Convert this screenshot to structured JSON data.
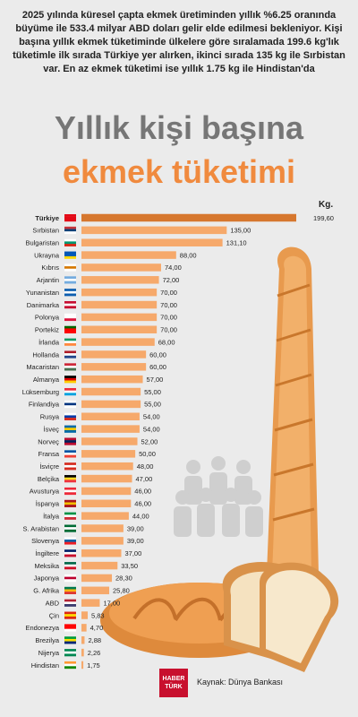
{
  "intro_text": "2025 yılında küresel çapta ekmek üretiminden yıllık %6.25 oranında büyüme ile 533.4 milyar ABD doları gelir elde edilmesi bekleniyor. Kişi başına yıllık ekmek tüketiminde ülkelere göre sıralamada 199.6 kg'lık tüketimle ilk sırada Türkiye yer alırken, ikinci sırada 135 kg ile Sırbistan var. En az ekmek tüketimi ise yıllık 1.75 kg ile Hindistan'da",
  "title_line1": "Yıllık kişi başına",
  "title_line2": "ekmek tüketimi",
  "unit_label": "Kg.",
  "source_text": "Kaynak: Dünya Bankası",
  "logo_text": "HABER TÜRK",
  "colors": {
    "background": "#ebebeb",
    "bar": "#f6a96b",
    "bar_highlight": "#d6772e",
    "title_gray": "#767676",
    "title_orange": "#f08a3e",
    "logo_red": "#c8102e",
    "bread": "#e89a4e",
    "people_icon": "#cfcfcf"
  },
  "chart_data": {
    "type": "bar",
    "orientation": "horizontal",
    "title": "Yıllık kişi başına ekmek tüketimi",
    "unit": "Kg.",
    "categories": [
      "Türkiye",
      "Sırbistan",
      "Bulgaristan",
      "Ukrayna",
      "Kıbrıs",
      "Arjantin",
      "Yunanistan",
      "Danimarka",
      "Polonya",
      "Portekiz",
      "İrlanda",
      "Hollanda",
      "Macaristan",
      "Almanya",
      "Lüksemburg",
      "Finlandiya",
      "Rusya",
      "İsveç",
      "Norveç",
      "Fransa",
      "İsviçre",
      "Belçika",
      "Avusturya",
      "İspanya",
      "İtalya",
      "S. Arabistan",
      "Slovenya",
      "İngiltere",
      "Meksika",
      "Japonya",
      "G. Afrika",
      "ABD",
      "Çin",
      "Endonezya",
      "Brezilya",
      "Nijerya",
      "Hindistan"
    ],
    "values": [
      199.6,
      135,
      131.1,
      88,
      74,
      72,
      70,
      70,
      70,
      70,
      68,
      60,
      60,
      57,
      55,
      55,
      54,
      54,
      52,
      50,
      48,
      47,
      46,
      46,
      44,
      39,
      39,
      37,
      33.5,
      28.3,
      25.8,
      17,
      5.83,
      4.7,
      2.88,
      2.26,
      1.75
    ],
    "value_labels": [
      "199,60",
      "135,00",
      "131,10",
      "88,00",
      "74,00",
      "72,00",
      "70,00",
      "70,00",
      "70,00",
      "70,00",
      "68,00",
      "60,00",
      "60,00",
      "57,00",
      "55,00",
      "55,00",
      "54,00",
      "54,00",
      "52,00",
      "50,00",
      "48,00",
      "47,00",
      "46,00",
      "46,00",
      "44,00",
      "39,00",
      "39,00",
      "37,00",
      "33,50",
      "28,30",
      "25,80",
      "17,00",
      "5,83",
      "4,70",
      "2,88",
      "2,26",
      "1,75"
    ],
    "flag_colors": [
      [
        "#e30a17",
        "#e30a17",
        "#e30a17"
      ],
      [
        "#c6363c",
        "#0c4076",
        "#ffffff"
      ],
      [
        "#ffffff",
        "#00966e",
        "#d62612"
      ],
      [
        "#0057b7",
        "#0057b7",
        "#ffd700"
      ],
      [
        "#ffffff",
        "#d57800",
        "#ffffff"
      ],
      [
        "#74acdf",
        "#ffffff",
        "#74acdf"
      ],
      [
        "#0d5eaf",
        "#ffffff",
        "#0d5eaf"
      ],
      [
        "#c60c30",
        "#ffffff",
        "#c60c30"
      ],
      [
        "#ffffff",
        "#ffffff",
        "#dc143c"
      ],
      [
        "#006600",
        "#ff0000",
        "#ff0000"
      ],
      [
        "#169b62",
        "#ffffff",
        "#ff883e"
      ],
      [
        "#ae1c28",
        "#ffffff",
        "#21468b"
      ],
      [
        "#ce2939",
        "#ffffff",
        "#477050"
      ],
      [
        "#000000",
        "#dd0000",
        "#ffce00"
      ],
      [
        "#ed2939",
        "#ffffff",
        "#00a1de"
      ],
      [
        "#ffffff",
        "#003580",
        "#ffffff"
      ],
      [
        "#ffffff",
        "#0039a6",
        "#d52b1e"
      ],
      [
        "#006aa7",
        "#fecc00",
        "#006aa7"
      ],
      [
        "#ba0c2f",
        "#00205b",
        "#ba0c2f"
      ],
      [
        "#0055a4",
        "#ffffff",
        "#ef4135"
      ],
      [
        "#d52b1e",
        "#ffffff",
        "#d52b1e"
      ],
      [
        "#000000",
        "#fdda24",
        "#ef3340"
      ],
      [
        "#ed2939",
        "#ffffff",
        "#ed2939"
      ],
      [
        "#aa151b",
        "#f1bf00",
        "#aa151b"
      ],
      [
        "#009246",
        "#ffffff",
        "#ce2b37"
      ],
      [
        "#006c35",
        "#ffffff",
        "#006c35"
      ],
      [
        "#ffffff",
        "#005da4",
        "#ed1c24"
      ],
      [
        "#012169",
        "#ffffff",
        "#c8102e"
      ],
      [
        "#006847",
        "#ffffff",
        "#ce1126"
      ],
      [
        "#ffffff",
        "#bc002d",
        "#ffffff"
      ],
      [
        "#007a4d",
        "#ffb612",
        "#de3831"
      ],
      [
        "#b22234",
        "#ffffff",
        "#3c3b6e"
      ],
      [
        "#de2910",
        "#ffde00",
        "#de2910"
      ],
      [
        "#ff0000",
        "#ff0000",
        "#ffffff"
      ],
      [
        "#009c3b",
        "#ffdf00",
        "#002776"
      ],
      [
        "#008751",
        "#ffffff",
        "#008751"
      ],
      [
        "#ff9933",
        "#ffffff",
        "#138808"
      ]
    ]
  }
}
